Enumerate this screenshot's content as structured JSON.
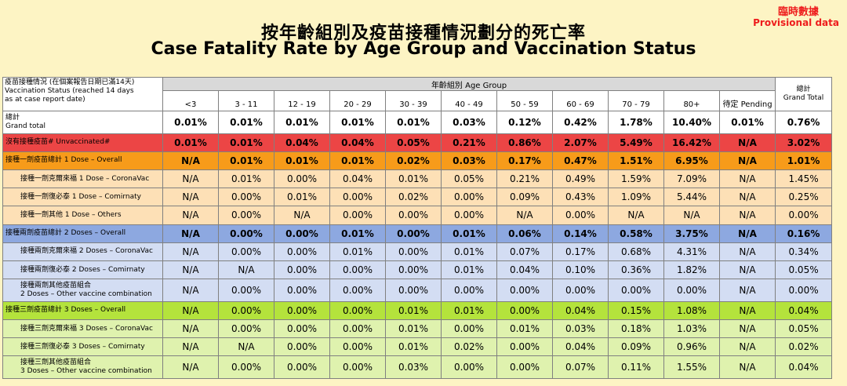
{
  "header": {
    "title_zh": "按年齡組別及疫苗接種情況劃分的死亡率",
    "title_en": "Case Fatality Rate by Age Group and Vaccination Status",
    "provisional_zh": "臨時數據",
    "provisional_en": "Provisional data"
  },
  "table": {
    "corner_label": [
      "疫苗接種情況 (在個案報告日期已滿14天)",
      "Vaccination Status (reached 14 days",
      "as at case report date)"
    ],
    "age_group_label": "年齡組別 Age Group",
    "total_label": [
      "總計",
      "Grand Total"
    ],
    "columns": [
      "<3",
      "3 - 11",
      "12 - 19",
      "20 - 29",
      "30 - 39",
      "40 - 49",
      "50 - 59",
      "60 - 69",
      "70 - 79",
      "80+",
      "待定 Pending"
    ]
  },
  "chart_data": {
    "type": "table",
    "title": "Case Fatality Rate by Age Group and Vaccination Status",
    "columns": [
      "<3",
      "3 - 11",
      "12 - 19",
      "20 - 29",
      "30 - 39",
      "40 - 49",
      "50 - 59",
      "60 - 69",
      "70 - 79",
      "80+",
      "待定 Pending",
      "Grand Total"
    ],
    "rows": [
      {
        "label": [
          "總計",
          "Grand total"
        ],
        "style": "total",
        "bold": true,
        "values": [
          "0.01%",
          "0.01%",
          "0.01%",
          "0.01%",
          "0.01%",
          "0.03%",
          "0.12%",
          "0.42%",
          "1.78%",
          "10.40%",
          "0.01%",
          "0.76%"
        ]
      },
      {
        "label": [
          "沒有接種疫苗# Unvaccinated#"
        ],
        "style": "unvac",
        "bold": true,
        "values": [
          "0.01%",
          "0.01%",
          "0.04%",
          "0.04%",
          "0.05%",
          "0.21%",
          "0.86%",
          "2.07%",
          "5.49%",
          "16.42%",
          "N/A",
          "3.02%"
        ]
      },
      {
        "label": [
          "接種一劑疫苗總計 1 Dose – Overall"
        ],
        "style": "d1",
        "bold": true,
        "values": [
          "N/A",
          "0.01%",
          "0.01%",
          "0.01%",
          "0.02%",
          "0.03%",
          "0.17%",
          "0.47%",
          "1.51%",
          "6.95%",
          "N/A",
          "1.01%"
        ]
      },
      {
        "label": [
          "接種一劑克爾來福 1 Dose – CoronaVac"
        ],
        "style": "d1s",
        "sub": true,
        "values": [
          "N/A",
          "0.01%",
          "0.00%",
          "0.04%",
          "0.01%",
          "0.05%",
          "0.21%",
          "0.49%",
          "1.59%",
          "7.09%",
          "N/A",
          "1.45%"
        ]
      },
      {
        "label": [
          "接種一劑復必泰 1 Dose – Comirnaty"
        ],
        "style": "d1s",
        "sub": true,
        "values": [
          "N/A",
          "0.00%",
          "0.01%",
          "0.00%",
          "0.02%",
          "0.00%",
          "0.09%",
          "0.43%",
          "1.09%",
          "5.44%",
          "N/A",
          "0.25%"
        ]
      },
      {
        "label": [
          "接種一劑其他 1 Dose – Others"
        ],
        "style": "d1s",
        "sub": true,
        "values": [
          "N/A",
          "0.00%",
          "N/A",
          "0.00%",
          "0.00%",
          "0.00%",
          "N/A",
          "0.00%",
          "N/A",
          "N/A",
          "N/A",
          "0.00%"
        ]
      },
      {
        "label": [
          "接種兩劑疫苗總計 2 Doses – Overall"
        ],
        "style": "d2",
        "bold": true,
        "values": [
          "N/A",
          "0.00%",
          "0.00%",
          "0.01%",
          "0.00%",
          "0.01%",
          "0.06%",
          "0.14%",
          "0.58%",
          "3.75%",
          "N/A",
          "0.16%"
        ]
      },
      {
        "label": [
          "接種兩劑克爾來福 2 Doses – CoronaVac"
        ],
        "style": "d2s",
        "sub": true,
        "values": [
          "N/A",
          "0.00%",
          "0.00%",
          "0.01%",
          "0.00%",
          "0.01%",
          "0.07%",
          "0.17%",
          "0.68%",
          "4.31%",
          "N/A",
          "0.34%"
        ]
      },
      {
        "label": [
          "接種兩劑復必泰 2 Doses – Comirnaty"
        ],
        "style": "d2s",
        "sub": true,
        "values": [
          "N/A",
          "N/A",
          "0.00%",
          "0.00%",
          "0.00%",
          "0.01%",
          "0.04%",
          "0.10%",
          "0.36%",
          "1.82%",
          "N/A",
          "0.05%"
        ]
      },
      {
        "label": [
          "接種兩劑其他疫苗組合",
          "2 Doses – Other vaccine combination"
        ],
        "style": "d2s",
        "sub": true,
        "values": [
          "N/A",
          "0.00%",
          "0.00%",
          "0.00%",
          "0.00%",
          "0.00%",
          "0.00%",
          "0.00%",
          "0.00%",
          "0.00%",
          "N/A",
          "0.00%"
        ]
      },
      {
        "label": [
          "接種三劑疫苗總計 3 Doses – Overall"
        ],
        "style": "d3",
        "values": [
          "N/A",
          "0.00%",
          "0.00%",
          "0.00%",
          "0.01%",
          "0.01%",
          "0.00%",
          "0.04%",
          "0.15%",
          "1.08%",
          "N/A",
          "0.04%"
        ]
      },
      {
        "label": [
          "接種三劑克爾來福 3 Doses – CoronaVac"
        ],
        "style": "d3s",
        "sub": true,
        "values": [
          "N/A",
          "0.00%",
          "0.00%",
          "0.00%",
          "0.01%",
          "0.00%",
          "0.01%",
          "0.03%",
          "0.18%",
          "1.03%",
          "N/A",
          "0.05%"
        ]
      },
      {
        "label": [
          "接種三劑復必泰 3 Doses – Comirnaty"
        ],
        "style": "d3s",
        "sub": true,
        "values": [
          "N/A",
          "N/A",
          "0.00%",
          "0.00%",
          "0.01%",
          "0.02%",
          "0.00%",
          "0.04%",
          "0.09%",
          "0.96%",
          "N/A",
          "0.02%"
        ]
      },
      {
        "label": [
          "接種三劑其他疫苗組合",
          "3 Doses – Other vaccine combination"
        ],
        "style": "d3s",
        "sub": true,
        "values": [
          "N/A",
          "0.00%",
          "0.00%",
          "0.00%",
          "0.03%",
          "0.00%",
          "0.00%",
          "0.07%",
          "0.11%",
          "1.55%",
          "N/A",
          "0.04%"
        ]
      }
    ]
  }
}
